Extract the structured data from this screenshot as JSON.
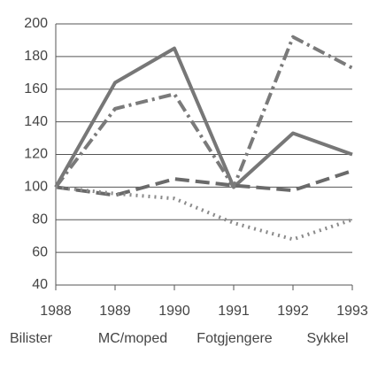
{
  "chart_data": {
    "type": "line",
    "x": [
      1988,
      1989,
      1990,
      1991,
      1992,
      1993
    ],
    "xlim": [
      1988,
      1993
    ],
    "xticks": [
      1988,
      1989,
      1990,
      1991,
      1992,
      1993
    ],
    "ylim": [
      40,
      200
    ],
    "yticks": [
      40,
      60,
      80,
      100,
      120,
      140,
      160,
      180,
      200
    ],
    "grid": true,
    "series": [
      {
        "name": "Bilister",
        "color": "#777777",
        "dash": "solid",
        "values": [
          100,
          164,
          185,
          100,
          133,
          120
        ]
      },
      {
        "name": "MC/moped",
        "color": "#7a7a7a",
        "dash": "dashdot",
        "values": [
          100,
          148,
          157,
          100,
          192,
          173
        ]
      },
      {
        "name": "Fotgjengere",
        "color": "#6a6a6a",
        "dash": "dashed",
        "values": [
          100,
          95,
          105,
          101,
          98,
          110
        ]
      },
      {
        "name": "Sykkel",
        "color": "#8a8a8a",
        "dash": "dotted",
        "values": [
          100,
          96,
          93,
          78,
          68,
          80
        ]
      }
    ]
  }
}
